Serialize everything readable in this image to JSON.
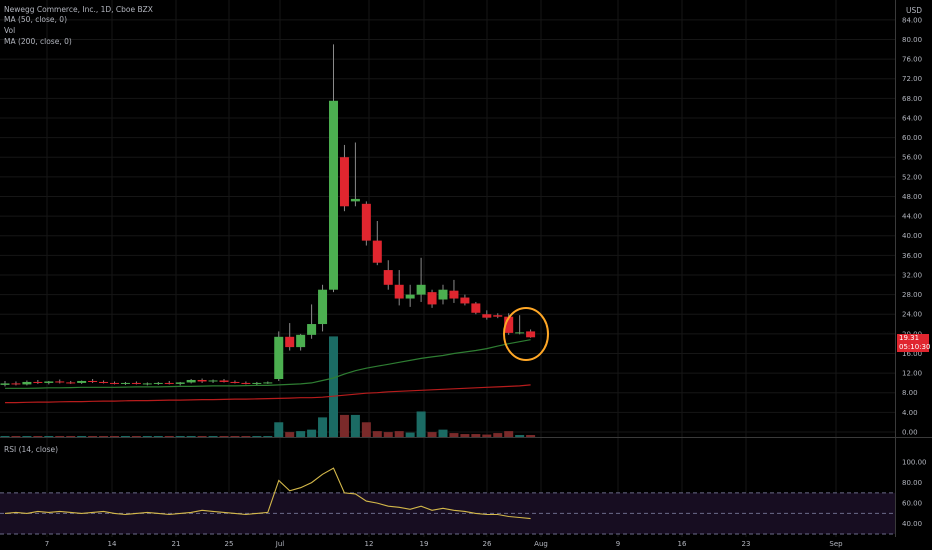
{
  "legend": {
    "symbol": "Newegg Commerce, Inc., 1D, Cboe BZX",
    "ma50": "MA (50, close, 0)",
    "vol": "Vol",
    "ma200": "MA (200, close, 0)",
    "rsi": "RSI (14, close)"
  },
  "price_axis": {
    "currency": "USD",
    "last_price": "19.31",
    "countdown": "05:10:30",
    "ticks": [
      "84.00",
      "80.00",
      "76.00",
      "72.00",
      "68.00",
      "64.00",
      "60.00",
      "56.00",
      "52.00",
      "48.00",
      "44.00",
      "40.00",
      "36.00",
      "32.00",
      "28.00",
      "24.00",
      "20.00",
      "16.00",
      "12.00",
      "8.00",
      "4.00",
      "0.00"
    ]
  },
  "rsi_axis": {
    "ticks": [
      "100.00",
      "80.00",
      "60.00",
      "40.00"
    ]
  },
  "date_axis": {
    "ticks": [
      "7",
      "14",
      "21",
      "25",
      "Jul",
      "12",
      "19",
      "26",
      "Aug",
      "9",
      "16",
      "23",
      "Sep"
    ]
  },
  "colors": {
    "up": "#4caf50",
    "down": "#e0262f",
    "ma50": "#2e7d32",
    "ma200": "#b71c1c",
    "rsi": "#d4b84a",
    "annotation": "#ffa726"
  },
  "chart_data": {
    "type": "candlestick",
    "y_range": [
      0,
      86
    ],
    "candles": [
      {
        "o": 9.6,
        "h": 10.4,
        "l": 9.3,
        "c": 9.9
      },
      {
        "o": 9.9,
        "h": 10.3,
        "l": 9.5,
        "c": 9.7
      },
      {
        "o": 9.7,
        "h": 10.5,
        "l": 9.5,
        "c": 10.2
      },
      {
        "o": 10.2,
        "h": 10.6,
        "l": 9.8,
        "c": 10.0
      },
      {
        "o": 10.0,
        "h": 10.4,
        "l": 9.7,
        "c": 10.3
      },
      {
        "o": 10.3,
        "h": 10.7,
        "l": 9.9,
        "c": 10.1
      },
      {
        "o": 10.1,
        "h": 10.4,
        "l": 9.8,
        "c": 10.0
      },
      {
        "o": 10.0,
        "h": 10.5,
        "l": 9.8,
        "c": 10.4
      },
      {
        "o": 10.4,
        "h": 10.8,
        "l": 10.0,
        "c": 10.2
      },
      {
        "o": 10.2,
        "h": 10.5,
        "l": 9.9,
        "c": 10.0
      },
      {
        "o": 10.0,
        "h": 10.3,
        "l": 9.7,
        "c": 9.9
      },
      {
        "o": 9.9,
        "h": 10.2,
        "l": 9.6,
        "c": 10.0
      },
      {
        "o": 10.0,
        "h": 10.3,
        "l": 9.7,
        "c": 9.8
      },
      {
        "o": 9.8,
        "h": 10.1,
        "l": 9.5,
        "c": 9.9
      },
      {
        "o": 9.9,
        "h": 10.2,
        "l": 9.6,
        "c": 10.0
      },
      {
        "o": 10.0,
        "h": 10.4,
        "l": 9.7,
        "c": 9.8
      },
      {
        "o": 9.8,
        "h": 10.2,
        "l": 9.5,
        "c": 10.1
      },
      {
        "o": 10.1,
        "h": 10.8,
        "l": 9.9,
        "c": 10.6
      },
      {
        "o": 10.6,
        "h": 10.9,
        "l": 10.0,
        "c": 10.3
      },
      {
        "o": 10.3,
        "h": 10.7,
        "l": 10.0,
        "c": 10.5
      },
      {
        "o": 10.5,
        "h": 10.8,
        "l": 10.1,
        "c": 10.2
      },
      {
        "o": 10.2,
        "h": 10.5,
        "l": 9.9,
        "c": 10.0
      },
      {
        "o": 10.0,
        "h": 10.3,
        "l": 9.7,
        "c": 9.9
      },
      {
        "o": 9.9,
        "h": 10.2,
        "l": 9.6,
        "c": 10.0
      },
      {
        "o": 10.0,
        "h": 10.3,
        "l": 9.8,
        "c": 10.1
      },
      {
        "o": 10.8,
        "h": 20.5,
        "l": 10.4,
        "c": 19.4
      },
      {
        "o": 19.4,
        "h": 22.2,
        "l": 16.6,
        "c": 17.3
      },
      {
        "o": 17.3,
        "h": 20.0,
        "l": 16.6,
        "c": 19.8
      },
      {
        "o": 19.8,
        "h": 26.0,
        "l": 19.0,
        "c": 22.0
      },
      {
        "o": 22.0,
        "h": 30.0,
        "l": 20.5,
        "c": 29.0
      },
      {
        "o": 29.0,
        "h": 79.0,
        "l": 28.5,
        "c": 67.5
      },
      {
        "o": 56.0,
        "h": 58.5,
        "l": 45.0,
        "c": 46.0
      },
      {
        "o": 47.0,
        "h": 59.0,
        "l": 46.0,
        "c": 47.5
      },
      {
        "o": 46.5,
        "h": 47.0,
        "l": 38.0,
        "c": 39.0
      },
      {
        "o": 39.0,
        "h": 43.0,
        "l": 34.0,
        "c": 34.5
      },
      {
        "o": 33.0,
        "h": 35.0,
        "l": 29.0,
        "c": 30.0
      },
      {
        "o": 30.0,
        "h": 33.0,
        "l": 25.8,
        "c": 27.2
      },
      {
        "o": 27.2,
        "h": 30.0,
        "l": 25.5,
        "c": 28.0
      },
      {
        "o": 28.0,
        "h": 35.5,
        "l": 26.5,
        "c": 30.0
      },
      {
        "o": 28.5,
        "h": 29.0,
        "l": 25.3,
        "c": 26.0
      },
      {
        "o": 27.0,
        "h": 30.0,
        "l": 26.0,
        "c": 29.0
      },
      {
        "o": 28.8,
        "h": 31.0,
        "l": 26.3,
        "c": 27.2
      },
      {
        "o": 27.4,
        "h": 28.0,
        "l": 25.8,
        "c": 26.2
      },
      {
        "o": 26.2,
        "h": 26.5,
        "l": 24.0,
        "c": 24.3
      },
      {
        "o": 24.0,
        "h": 24.8,
        "l": 22.9,
        "c": 23.3
      },
      {
        "o": 23.8,
        "h": 24.2,
        "l": 23.2,
        "c": 23.5
      },
      {
        "o": 23.5,
        "h": 24.2,
        "l": 19.8,
        "c": 20.2
      },
      {
        "o": 20.2,
        "h": 23.8,
        "l": 19.9,
        "c": 20.3
      },
      {
        "o": 20.5,
        "h": 20.9,
        "l": 19.2,
        "c": 19.3
      }
    ],
    "volume": [
      0.2,
      0.2,
      0.2,
      0.2,
      0.2,
      0.2,
      0.2,
      0.2,
      0.2,
      0.2,
      0.2,
      0.2,
      0.2,
      0.2,
      0.2,
      0.2,
      0.2,
      0.2,
      0.2,
      0.2,
      0.2,
      0.2,
      0.2,
      0.2,
      0.2,
      3,
      1,
      1.2,
      1.5,
      4,
      20.5,
      4.5,
      4.5,
      3,
      1.2,
      1,
      1.2,
      0.9,
      5.2,
      1,
      1.5,
      0.8,
      0.6,
      0.6,
      0.5,
      0.8,
      1.2,
      0.4,
      0.4
    ],
    "volume_range": [
      0,
      86
    ],
    "ma50": [
      8.9,
      8.9,
      8.9,
      8.95,
      9.0,
      9.0,
      9.05,
      9.1,
      9.1,
      9.1,
      9.1,
      9.15,
      9.2,
      9.2,
      9.2,
      9.25,
      9.3,
      9.3,
      9.35,
      9.4,
      9.4,
      9.4,
      9.45,
      9.5,
      9.5,
      9.6,
      9.7,
      9.8,
      10.0,
      10.5,
      11.0,
      11.8,
      12.5,
      13.0,
      13.4,
      13.8,
      14.2,
      14.6,
      15.0,
      15.3,
      15.6,
      16.0,
      16.3,
      16.6,
      17.0,
      17.5,
      18.0,
      18.4,
      18.8
    ],
    "ma200": [
      6.0,
      6.0,
      6.05,
      6.1,
      6.1,
      6.15,
      6.2,
      6.2,
      6.25,
      6.3,
      6.3,
      6.35,
      6.4,
      6.4,
      6.45,
      6.5,
      6.5,
      6.55,
      6.6,
      6.6,
      6.65,
      6.7,
      6.7,
      6.75,
      6.8,
      6.85,
      6.9,
      7.0,
      7.0,
      7.1,
      7.3,
      7.5,
      7.7,
      7.9,
      8.0,
      8.2,
      8.3,
      8.4,
      8.5,
      8.6,
      8.7,
      8.8,
      8.9,
      9.0,
      9.1,
      9.2,
      9.3,
      9.4,
      9.6
    ],
    "rsi": [
      50,
      51,
      50,
      52,
      51,
      52,
      51,
      50,
      51,
      52,
      50,
      49,
      50,
      51,
      50,
      49,
      50,
      51,
      53,
      52,
      51,
      50,
      49,
      50,
      51,
      82,
      72,
      75,
      80,
      88,
      94,
      70,
      69,
      62,
      60,
      57,
      56,
      54,
      57,
      53,
      55,
      53,
      52,
      50,
      49,
      49,
      47,
      46,
      45
    ]
  }
}
